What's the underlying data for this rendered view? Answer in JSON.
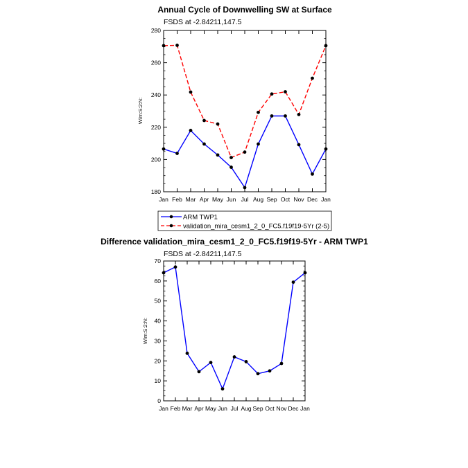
{
  "chart_data": [
    {
      "type": "line",
      "title": "Annual Cycle of Downwelling SW at Surface",
      "subtitle": "FSDS at -2.84211,147.5",
      "xlabel": "",
      "ylabel": "W/m:S:2:N:",
      "categories": [
        "Jan",
        "Feb",
        "Mar",
        "Apr",
        "May",
        "Jun",
        "Jul",
        "Aug",
        "Sep",
        "Oct",
        "Nov",
        "Dec",
        "Jan"
      ],
      "ylim": [
        180,
        280
      ],
      "yticks": [
        180,
        200,
        220,
        240,
        260,
        280
      ],
      "grid": false,
      "legend_position": "bottom",
      "series": [
        {
          "name": "ARM TWP1",
          "color": "#0000ff",
          "dash": "solid",
          "values": [
            206.5,
            203.8,
            218.0,
            209.6,
            202.8,
            195.2,
            182.6,
            209.6,
            227.0,
            227.0,
            209.2,
            191.0,
            206.5
          ]
        },
        {
          "name": "validation_mira_cesm1_2_0_FC5.f19f19-5Yr (2-5)",
          "color": "#ff0000",
          "dash": "dashed",
          "values": [
            270.6,
            270.8,
            241.8,
            224.2,
            222.0,
            201.2,
            204.6,
            229.2,
            240.6,
            242.0,
            227.9,
            250.4,
            270.6
          ]
        }
      ]
    },
    {
      "type": "line",
      "title": "Difference validation_mira_cesm1_2_0_FC5.f19f19-5Yr - ARM TWP1",
      "subtitle": "FSDS at -2.84211,147.5",
      "xlabel": "",
      "ylabel": "W/m:S:2:N:",
      "categories": [
        "Jan",
        "Feb",
        "Mar",
        "Apr",
        "May",
        "Jun",
        "Jul",
        "Aug",
        "Sep",
        "Oct",
        "Nov",
        "Dec",
        "Jan"
      ],
      "ylim": [
        0,
        70
      ],
      "yticks": [
        0,
        10,
        20,
        30,
        40,
        50,
        60,
        70
      ],
      "grid": false,
      "series": [
        {
          "color": "#0000ff",
          "dash": "solid",
          "values": [
            64.1,
            67.0,
            23.8,
            14.6,
            19.2,
            6.0,
            22.0,
            19.6,
            13.6,
            15.0,
            18.7,
            59.4,
            64.1
          ]
        }
      ]
    }
  ]
}
